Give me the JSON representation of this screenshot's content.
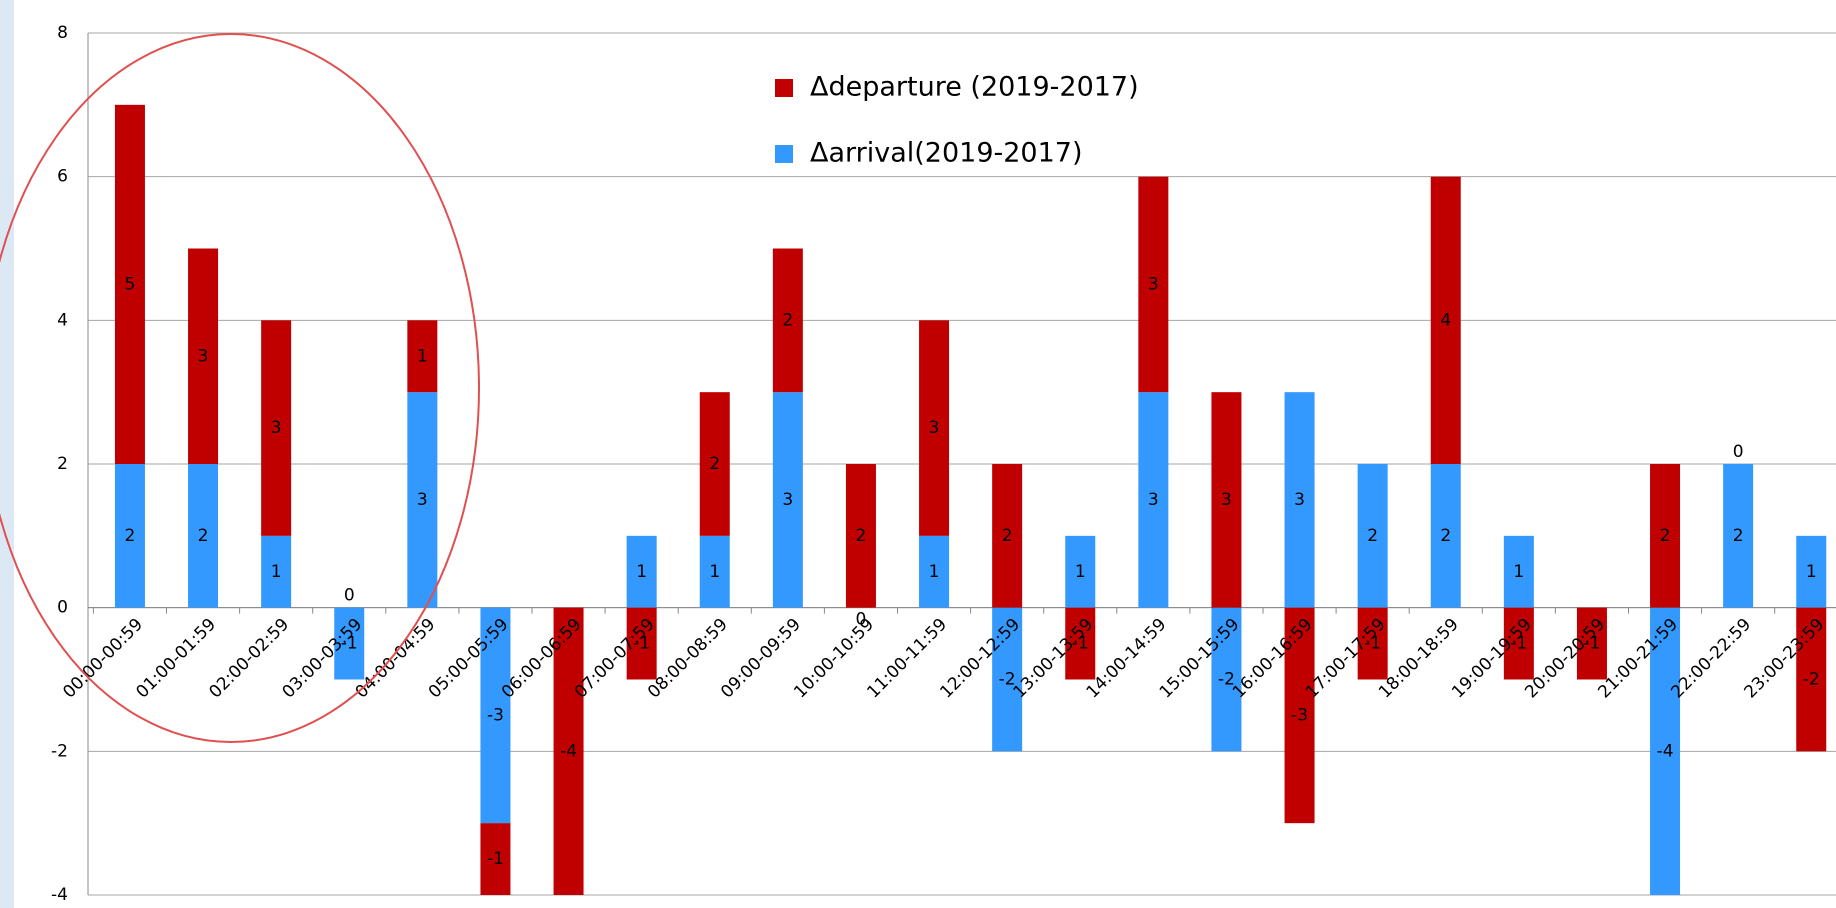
{
  "chart_data": {
    "type": "stacked_bar",
    "categories": [
      "00:00-00:59",
      "01:00-01:59",
      "02:00-02:59",
      "03:00-03:59",
      "04:00-04:59",
      "05:00-05:59",
      "06:00-06:59",
      "07:00-07:59",
      "08:00-08:59",
      "09:00-09:59",
      "10:00-10:59",
      "11:00-11:59",
      "12:00-12:59",
      "13:00-13:59",
      "14:00-14:59",
      "15:00-15:59",
      "16:00-16:59",
      "17:00-17:59",
      "18:00-18:59",
      "19:00-19:59",
      "20:00-20:59",
      "21:00-21:59",
      "22:00-22:59",
      "23:00-23:59"
    ],
    "series": [
      {
        "name": "Δarrival(2019-2017)",
        "color": "#3399ff",
        "values": [
          2,
          2,
          1,
          -1,
          3,
          -3,
          0,
          1,
          1,
          3,
          0,
          1,
          -2,
          1,
          3,
          -2,
          3,
          2,
          2,
          1,
          0,
          -4,
          2,
          1
        ]
      },
      {
        "name": "Δdeparture (2019-2017)",
        "color": "#c00000",
        "values": [
          5,
          3,
          3,
          0,
          1,
          -1,
          -4,
          -1,
          2,
          2,
          2,
          3,
          2,
          -1,
          3,
          3,
          -3,
          -1,
          4,
          -1,
          -1,
          2,
          0,
          -2
        ]
      }
    ],
    "ylim": [
      -4,
      8
    ],
    "yticks": [
      -4,
      -2,
      0,
      2,
      4,
      6,
      8
    ],
    "grid": true
  }
}
